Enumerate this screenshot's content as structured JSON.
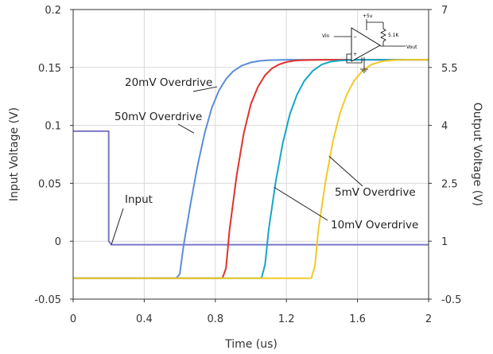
{
  "chart_data": {
    "type": "line",
    "xlabel": "Time (us)",
    "ylabel": "Input Voltage (V)",
    "y2label": "Output Voltage (V)",
    "xlim": [
      0,
      2
    ],
    "ylim": [
      -0.05,
      0.2
    ],
    "y2lim": [
      -0.5,
      7
    ],
    "grid": true,
    "x_ticks": [
      "0",
      "0.4",
      "0.8",
      "1.2",
      "1.6",
      "2"
    ],
    "y_ticks": [
      "-0.05",
      "0",
      "0.05",
      "0.1",
      "0.15",
      "0.2"
    ],
    "y2_ticks": [
      "-0.5",
      "1",
      "2.5",
      "4",
      "5.5",
      "7"
    ],
    "series": [
      {
        "name": "Input",
        "axis": "left",
        "color": "#7a78c8",
        "points": [
          [
            0,
            0.095
          ],
          [
            0.2,
            0.095
          ],
          [
            0.2,
            0.0
          ],
          [
            0.215,
            -0.003
          ],
          [
            2,
            -0.003
          ]
        ]
      },
      {
        "name": "50mV Overdrive",
        "axis": "right",
        "color": "#5b8ed6",
        "x": [
          0,
          0.58,
          0.6,
          0.62,
          0.66,
          0.7,
          0.74,
          0.78,
          0.82,
          0.86,
          0.9,
          0.95,
          1.0,
          1.05,
          1.1,
          1.2,
          1.4,
          2.0
        ],
        "y": [
          0.04,
          0.04,
          0.15,
          0.85,
          1.95,
          2.95,
          3.8,
          4.45,
          4.9,
          5.2,
          5.4,
          5.55,
          5.63,
          5.67,
          5.69,
          5.7,
          5.7,
          5.7
        ]
      },
      {
        "name": "20mV Overdrive",
        "axis": "right",
        "color": "#e0332a",
        "x": [
          0,
          0.84,
          0.86,
          0.88,
          0.92,
          0.96,
          1.0,
          1.04,
          1.08,
          1.12,
          1.16,
          1.2,
          1.25,
          1.3,
          1.4,
          1.6,
          2.0
        ],
        "y": [
          0.04,
          0.04,
          0.3,
          1.3,
          2.7,
          3.8,
          4.55,
          5.0,
          5.3,
          5.48,
          5.58,
          5.64,
          5.68,
          5.69,
          5.7,
          5.7,
          5.7
        ]
      },
      {
        "name": "10mV Overdrive",
        "axis": "right",
        "color": "#17a6c6",
        "x": [
          0,
          1.06,
          1.08,
          1.1,
          1.14,
          1.18,
          1.22,
          1.26,
          1.3,
          1.35,
          1.4,
          1.45,
          1.5,
          1.6,
          1.8,
          2.0
        ],
        "y": [
          0.04,
          0.04,
          0.4,
          1.3,
          2.55,
          3.55,
          4.3,
          4.8,
          5.15,
          5.42,
          5.58,
          5.65,
          5.68,
          5.7,
          5.7,
          5.7
        ]
      },
      {
        "name": "5mV Overdrive",
        "axis": "right",
        "color": "#f2c928",
        "x": [
          0,
          1.34,
          1.36,
          1.38,
          1.42,
          1.46,
          1.5,
          1.54,
          1.58,
          1.63,
          1.68,
          1.74,
          1.8,
          1.9,
          2.0
        ],
        "y": [
          0.04,
          0.04,
          0.35,
          1.3,
          2.55,
          3.55,
          4.3,
          4.8,
          5.15,
          5.42,
          5.58,
          5.66,
          5.69,
          5.7,
          5.7
        ]
      }
    ],
    "annotations": [
      {
        "text": "20mV Overdrive",
        "target_series": "20mV Overdrive",
        "ax": 0.81,
        "ay": 5.0
      },
      {
        "text": "50mV Overdrive",
        "target_series": "50mV Overdrive",
        "ax": 0.68,
        "ay": 3.8
      },
      {
        "text": "Input",
        "target_series": "Input",
        "ax": 0.215,
        "ay": -0.003
      },
      {
        "text": "5mV Overdrive",
        "target_series": "5mV Overdrive",
        "ax": 1.44,
        "ay": 3.2
      },
      {
        "text": "10mV Overdrive",
        "target_series": "10mV Overdrive",
        "ax": 1.13,
        "ay": 2.4
      }
    ],
    "schematic": {
      "labels": [
        "+5v",
        "Vin",
        "5.1K",
        "Vout"
      ]
    }
  }
}
